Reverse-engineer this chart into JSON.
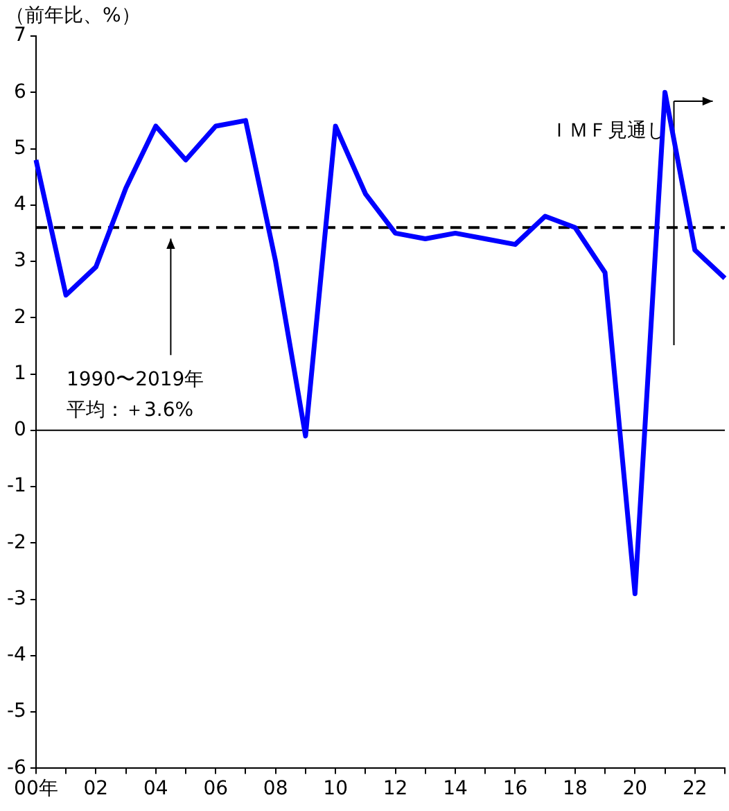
{
  "chart_data": {
    "type": "line",
    "ylabel": "（前年比、%）",
    "categories": [
      "00年",
      null,
      "02",
      null,
      "04",
      null,
      "06",
      null,
      "08",
      null,
      "10",
      null,
      "12",
      null,
      "14",
      null,
      "16",
      null,
      "18",
      null,
      "20",
      null,
      "22",
      null
    ],
    "series": [
      {
        "color": "#0000ff",
        "values": [
          4.8,
          2.4,
          2.9,
          4.3,
          5.4,
          4.8,
          5.4,
          5.5,
          3.0,
          -0.1,
          5.4,
          4.2,
          3.5,
          3.4,
          3.5,
          3.4,
          3.3,
          3.8,
          3.6,
          2.8,
          -2.9,
          6.0,
          3.2,
          2.7
        ]
      }
    ],
    "ylim": [
      -6,
      7
    ],
    "yticks": [
      -6,
      -5,
      -4,
      -3,
      -2,
      -1,
      0,
      1,
      2,
      3,
      4,
      5,
      6,
      7
    ],
    "ref_lines": [
      {
        "axis": "y",
        "value": 3.6,
        "label": "1990〜2019年",
        "line_style": "dashed",
        "color": "#000000"
      },
      {
        "axis": "y",
        "value": 0,
        "line_style": "solid",
        "color": "#000000"
      }
    ],
    "annotations": [
      "平均：＋3.6%",
      "ＩＭＦ見通し"
    ],
    "grid": false,
    "legend": false,
    "marker": "none",
    "line_style": "solid"
  }
}
